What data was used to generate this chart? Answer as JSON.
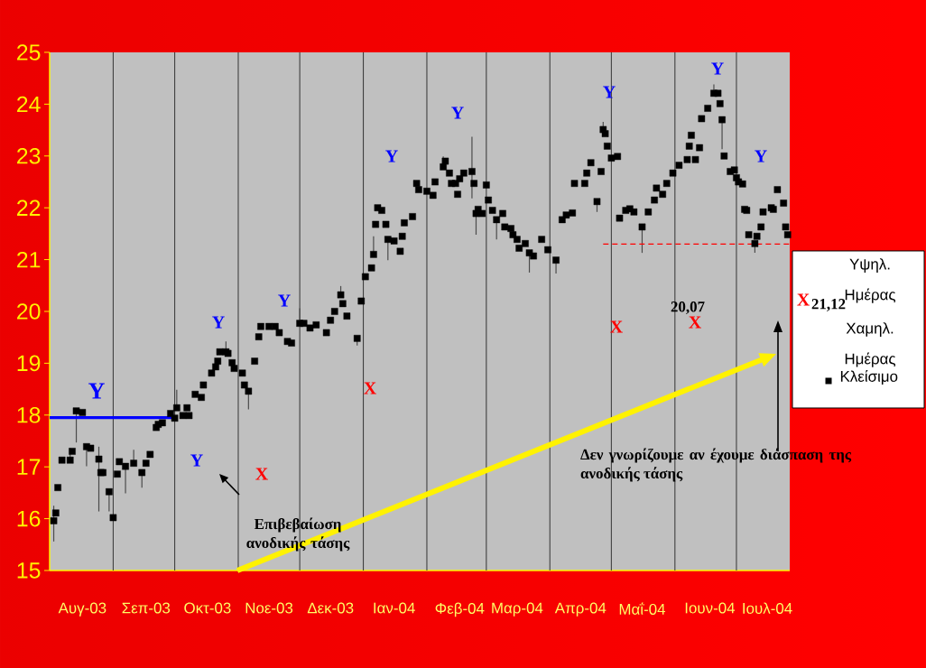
{
  "chart_data": {
    "type": "scatter",
    "xlim": [
      "2003-08-01",
      "2004-07-27"
    ],
    "xticks": [
      {
        "value": "2003-08-17",
        "label": "Αυγ-03"
      },
      {
        "value": "2003-09-17",
        "label": "Σεπ-03"
      },
      {
        "value": "2003-10-17",
        "label": "Οκτ-03"
      },
      {
        "value": "2003-11-16",
        "label": "Νοε-03"
      },
      {
        "value": "2003-12-16",
        "label": "Δεκ-03"
      },
      {
        "value": "2004-01-16",
        "label": "Ιαν-04"
      },
      {
        "value": "2004-02-17",
        "label": "Φεβ-04"
      },
      {
        "value": "2004-03-16",
        "label": "Μαρ-04"
      },
      {
        "value": "2004-04-16",
        "label": "Απρ-04"
      },
      {
        "value": "2004-05-16",
        "label": "Μαΐ-04"
      },
      {
        "value": "2004-06-18",
        "label": "Ιουν-04"
      },
      {
        "value": "2004-07-16",
        "label": "Ιουλ-04"
      }
    ],
    "ylim": [
      15,
      25
    ],
    "yticks": [
      15,
      16,
      17,
      18,
      19,
      20,
      21,
      22,
      23,
      24,
      25
    ],
    "legend": "right",
    "series": [
      {
        "name": "Κλείσιμο",
        "marker": "square",
        "color": "#000000",
        "x": [
          "2003-08-03",
          "2003-08-04",
          "2003-08-05",
          "2003-08-07",
          "2003-08-11",
          "2003-08-12",
          "2003-08-14",
          "2003-08-17",
          "2003-08-19",
          "2003-08-21",
          "2003-08-25",
          "2003-08-26",
          "2003-08-27",
          "2003-08-30",
          "2003-09-01",
          "2003-09-03",
          "2003-09-04",
          "2003-09-07",
          "2003-09-11",
          "2003-09-15",
          "2003-09-17",
          "2003-09-19",
          "2003-09-22",
          "2003-09-23",
          "2003-09-25",
          "2003-09-29",
          "2003-10-01",
          "2003-10-02",
          "2003-10-05",
          "2003-10-07",
          "2003-10-08",
          "2003-10-11",
          "2003-10-14",
          "2003-10-15",
          "2003-10-19",
          "2003-10-21",
          "2003-10-22",
          "2003-10-23",
          "2003-10-26",
          "2003-10-27",
          "2003-10-29",
          "2003-10-30",
          "2003-11-03",
          "2003-11-04",
          "2003-11-06",
          "2003-11-09",
          "2003-11-11",
          "2003-11-12",
          "2003-11-16",
          "2003-11-19",
          "2003-11-21",
          "2003-11-25",
          "2003-11-27",
          "2003-12-01",
          "2003-12-03",
          "2003-12-06",
          "2003-12-09",
          "2003-12-14",
          "2003-12-16",
          "2003-12-18",
          "2003-12-21",
          "2003-12-22",
          "2003-12-24",
          "2003-12-29",
          "2003-12-31",
          "2004-01-02",
          "2004-01-05",
          "2004-01-06",
          "2004-01-07",
          "2004-01-08",
          "2004-01-10",
          "2004-01-12",
          "2004-01-13",
          "2004-01-16",
          "2004-01-19",
          "2004-01-20",
          "2004-01-21",
          "2004-01-25",
          "2004-01-27",
          "2004-01-28",
          "2004-02-01",
          "2004-02-04",
          "2004-02-05",
          "2004-02-09",
          "2004-02-10",
          "2004-02-12",
          "2004-02-13",
          "2004-02-15",
          "2004-02-16",
          "2004-02-17",
          "2004-02-19",
          "2004-02-23",
          "2004-02-24",
          "2004-02-25",
          "2004-02-26",
          "2004-02-28",
          "2004-03-01",
          "2004-03-02",
          "2004-03-04",
          "2004-03-06",
          "2004-03-09",
          "2004-03-10",
          "2004-03-13",
          "2004-03-14",
          "2004-03-16",
          "2004-03-17",
          "2004-03-20",
          "2004-03-22",
          "2004-03-24",
          "2004-03-28",
          "2004-03-31",
          "2004-04-04",
          "2004-04-07",
          "2004-04-09",
          "2004-04-12",
          "2004-04-13",
          "2004-04-18",
          "2004-04-19",
          "2004-04-21",
          "2004-04-24",
          "2004-04-26",
          "2004-04-27",
          "2004-04-28",
          "2004-04-29",
          "2004-05-01",
          "2004-05-04",
          "2004-05-05",
          "2004-05-08",
          "2004-05-10",
          "2004-05-12",
          "2004-05-16",
          "2004-05-19",
          "2004-05-22",
          "2004-05-23",
          "2004-05-26",
          "2004-05-28",
          "2004-05-31",
          "2004-06-03",
          "2004-06-07",
          "2004-06-08",
          "2004-06-09",
          "2004-06-11",
          "2004-06-13",
          "2004-06-14",
          "2004-06-17",
          "2004-06-20",
          "2004-06-22",
          "2004-06-23",
          "2004-06-24",
          "2004-06-25",
          "2004-06-28",
          "2004-06-30",
          "2004-07-01",
          "2004-07-02",
          "2004-07-04",
          "2004-07-05",
          "2004-07-06",
          "2004-07-07",
          "2004-07-10",
          "2004-07-11",
          "2004-07-13",
          "2004-07-14",
          "2004-07-18",
          "2004-07-19",
          "2004-07-21",
          "2004-07-24",
          "2004-07-25",
          "2004-07-26"
        ],
        "values": [
          15.96,
          16.11,
          16.6,
          17.13,
          17.13,
          17.3,
          18.08,
          18.05,
          17.39,
          17.36,
          17.15,
          16.89,
          16.89,
          16.52,
          16.02,
          16.86,
          17.1,
          17.01,
          17.07,
          16.89,
          17.07,
          17.24,
          17.76,
          17.82,
          17.85,
          18.03,
          17.94,
          18.14,
          17.99,
          18.14,
          17.99,
          18.4,
          18.34,
          18.58,
          18.81,
          18.93,
          19.04,
          19.22,
          19.22,
          19.19,
          19.01,
          18.9,
          18.81,
          18.58,
          18.46,
          19.04,
          19.51,
          19.71,
          19.71,
          19.71,
          19.59,
          19.42,
          19.39,
          19.77,
          19.77,
          19.68,
          19.74,
          19.59,
          19.83,
          20.0,
          20.32,
          20.15,
          19.91,
          19.48,
          20.2,
          20.67,
          20.84,
          21.1,
          21.68,
          22.0,
          21.95,
          21.68,
          21.39,
          21.36,
          21.16,
          21.45,
          21.71,
          21.83,
          22.47,
          22.35,
          22.32,
          22.24,
          22.5,
          22.79,
          22.9,
          22.67,
          22.47,
          22.47,
          22.26,
          22.56,
          22.67,
          22.7,
          22.47,
          21.89,
          21.97,
          21.89,
          22.44,
          22.15,
          21.95,
          21.77,
          21.89,
          21.63,
          21.6,
          21.48,
          21.39,
          21.22,
          21.31,
          21.13,
          21.07,
          21.39,
          21.19,
          20.99,
          21.77,
          21.86,
          21.9,
          22.47,
          22.47,
          22.67,
          22.87,
          22.12,
          22.7,
          23.51,
          23.43,
          23.19,
          22.96,
          22.99,
          21.8,
          21.95,
          21.98,
          21.92,
          21.63,
          21.92,
          22.15,
          22.38,
          22.26,
          22.47,
          22.67,
          22.82,
          22.93,
          23.19,
          23.4,
          22.93,
          23.16,
          23.72,
          23.92,
          24.21,
          24.21,
          24.01,
          23.7,
          23.0,
          22.7,
          22.73,
          22.58,
          22.5,
          22.46,
          21.97,
          21.95,
          21.48,
          21.31,
          21.45,
          21.63,
          21.92,
          22.0,
          21.97,
          22.35,
          22.09,
          21.63,
          21.48
        ],
        "errors": [
          [
            15.56,
            16.25
          ],
          null,
          null,
          null,
          [
            17.13,
            17.36
          ],
          null,
          [
            17.47,
            18.1
          ],
          null,
          [
            17.01,
            17.39
          ],
          null,
          [
            16.14,
            17.39
          ],
          null,
          null,
          [
            16.14,
            16.52
          ],
          null,
          null,
          null,
          [
            16.49,
            17.01
          ],
          [
            17.07,
            17.33
          ],
          [
            16.6,
            16.89
          ],
          null,
          null,
          null,
          null,
          null,
          null,
          null,
          [
            18.14,
            18.49
          ],
          null,
          null,
          null,
          null,
          null,
          null,
          null,
          null,
          null,
          null,
          [
            19.22,
            19.42
          ],
          null,
          null,
          null,
          null,
          null,
          [
            18.11,
            18.46
          ],
          null,
          null,
          null,
          null,
          null,
          null,
          null,
          null,
          [
            19.77,
            20.06
          ],
          null,
          null,
          null,
          null,
          null,
          null,
          [
            20.32,
            20.49
          ],
          null,
          null,
          [
            19.34,
            19.48
          ],
          null,
          null,
          null,
          [
            21.1,
            21.45
          ],
          null,
          null,
          null,
          null,
          [
            20.99,
            21.39
          ],
          null,
          null,
          null,
          null,
          null,
          null,
          null,
          null,
          null,
          null,
          [
            22.79,
            22.99
          ],
          null,
          null,
          null,
          null,
          null,
          null,
          null,
          [
            22.18,
            23.37
          ],
          null,
          [
            21.48,
            21.89
          ],
          null,
          null,
          null,
          null,
          null,
          [
            21.39,
            21.77
          ],
          null,
          null,
          null,
          null,
          null,
          null,
          null,
          [
            20.75,
            21.13
          ],
          null,
          null,
          null,
          [
            20.73,
            20.99
          ],
          null,
          null,
          null,
          null,
          null,
          null,
          null,
          [
            21.92,
            22.12
          ],
          null,
          [
            23.51,
            23.66
          ],
          null,
          null,
          null,
          null,
          null,
          null,
          null,
          null,
          [
            21.13,
            21.63
          ],
          null,
          null,
          null,
          null,
          null,
          null,
          null,
          null,
          null,
          null,
          null,
          null,
          null,
          null,
          [
            24.21,
            24.38
          ],
          null,
          null,
          [
            23.13,
            23.7
          ],
          null,
          null,
          null,
          null,
          null,
          null,
          null,
          null,
          null,
          [
            21.13,
            21.31
          ],
          null,
          null,
          null,
          null,
          null,
          null,
          null,
          null,
          null
        ]
      },
      {
        "type": "line",
        "line_style": "solid",
        "color": "#0000ff",
        "x": [
          "2003-08-01",
          "2003-10-01"
        ],
        "values": [
          17.95,
          17.95
        ]
      },
      {
        "type": "line",
        "line_style": "dashed",
        "color": "#ff0000",
        "x": [
          "2004-04-27",
          "2004-07-27"
        ],
        "values": [
          21.3,
          21.3
        ]
      }
    ],
    "ref_lines": [
      {
        "axis": "x",
        "value": "2003-09-01",
        "color": "#404040"
      },
      {
        "axis": "x",
        "value": "2003-10-01",
        "color": "#404040"
      },
      {
        "axis": "x",
        "value": "2003-11-01",
        "color": "#404040"
      },
      {
        "axis": "x",
        "value": "2003-12-01",
        "color": "#404040"
      },
      {
        "axis": "x",
        "value": "2004-01-01",
        "color": "#404040"
      },
      {
        "axis": "x",
        "value": "2004-02-01",
        "color": "#404040"
      },
      {
        "axis": "x",
        "value": "2004-03-01",
        "color": "#404040"
      },
      {
        "axis": "x",
        "value": "2004-04-01",
        "color": "#404040"
      },
      {
        "axis": "x",
        "value": "2004-05-01",
        "color": "#404040"
      },
      {
        "axis": "x",
        "value": "2004-06-01",
        "color": "#404040"
      },
      {
        "axis": "x",
        "value": "2004-07-01",
        "color": "#404040"
      }
    ],
    "annotations": [
      "Y",
      "Y",
      "Y",
      "X",
      "Y",
      "X",
      "Y",
      "Y",
      "Y",
      "X",
      "X",
      "Y",
      "Y",
      "20,07",
      "Επιβεβαίωση ανοδικής τάσης",
      "Δεν γνωρίζουμε αν έχουμε διάσπαση της ανοδικής τάσης",
      "Υψηλ. Ημέρας",
      "X",
      "21,12",
      "Χαμηλ. Ημέρας"
    ]
  }
}
